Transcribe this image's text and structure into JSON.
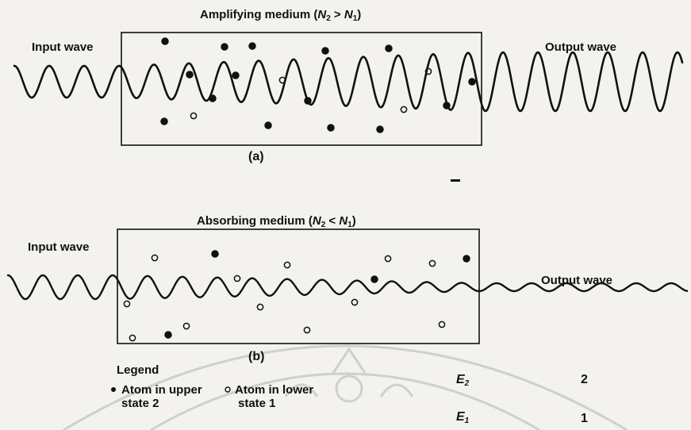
{
  "panel_a": {
    "title_text": "Amplifying medium (",
    "title_n2": "N",
    "title_n2_sub": "2",
    "title_op": " > ",
    "title_n1": "N",
    "title_n1_sub": "1",
    "title_close": ")",
    "input_label": "Input wave",
    "output_label": "Output wave",
    "caption": "(a)"
  },
  "panel_b": {
    "title_text": "Absorbing medium (",
    "title_n2": "N",
    "title_n2_sub": "2",
    "title_op": " < ",
    "title_n1": "N",
    "title_n1_sub": "1",
    "title_close": ")",
    "input_label": "Input wave",
    "output_label": "Output wave",
    "caption": "(b)"
  },
  "legend": {
    "title": "Legend",
    "upper_line1": "Atom in upper",
    "upper_line2": "state 2",
    "lower_line1": "Atom in lower",
    "lower_line2": "state 1",
    "e2_label": "E",
    "e2_sub": "2",
    "e2_value": "2",
    "e1_label": "E",
    "e1_sub": "1",
    "e1_value": "1"
  },
  "colors": {
    "ink": "#111111",
    "paper": "#f3f2ef",
    "watermark": "#c9c9c9"
  }
}
